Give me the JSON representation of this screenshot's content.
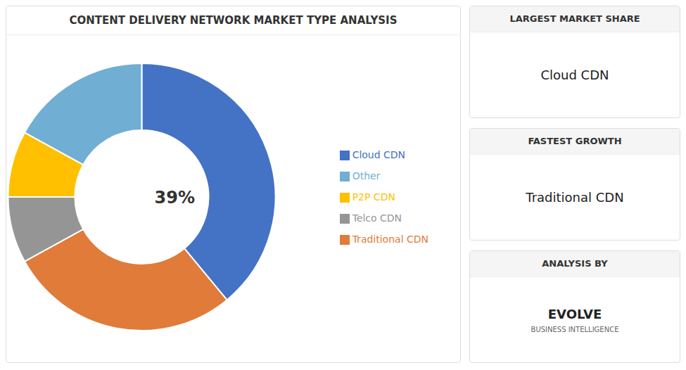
{
  "chart_data": {
    "type": "pie",
    "title": "CONTENT DELIVERY NETWORK MARKET TYPE ANALYSIS",
    "categories": [
      "Cloud CDN",
      "Traditional CDN",
      "Telco CDN",
      "P2P CDN",
      "Other"
    ],
    "values": [
      39,
      28,
      8,
      8,
      17
    ],
    "colors": [
      "#4472c4",
      "#e07b39",
      "#959595",
      "#ffc000",
      "#70aed4"
    ],
    "legend": "right",
    "annotations": [
      {
        "text": "39%"
      },
      {
        "title": "LARGEST MARKET SHARE",
        "text": "Cloud CDN"
      },
      {
        "title": "FASTEST GROWTH",
        "text": "Traditional CDN"
      },
      {
        "title": "ANALYSIS BY",
        "text": "EVOLVE",
        "subtitle": "BUSINESS INTELLIGENCE"
      }
    ]
  }
}
